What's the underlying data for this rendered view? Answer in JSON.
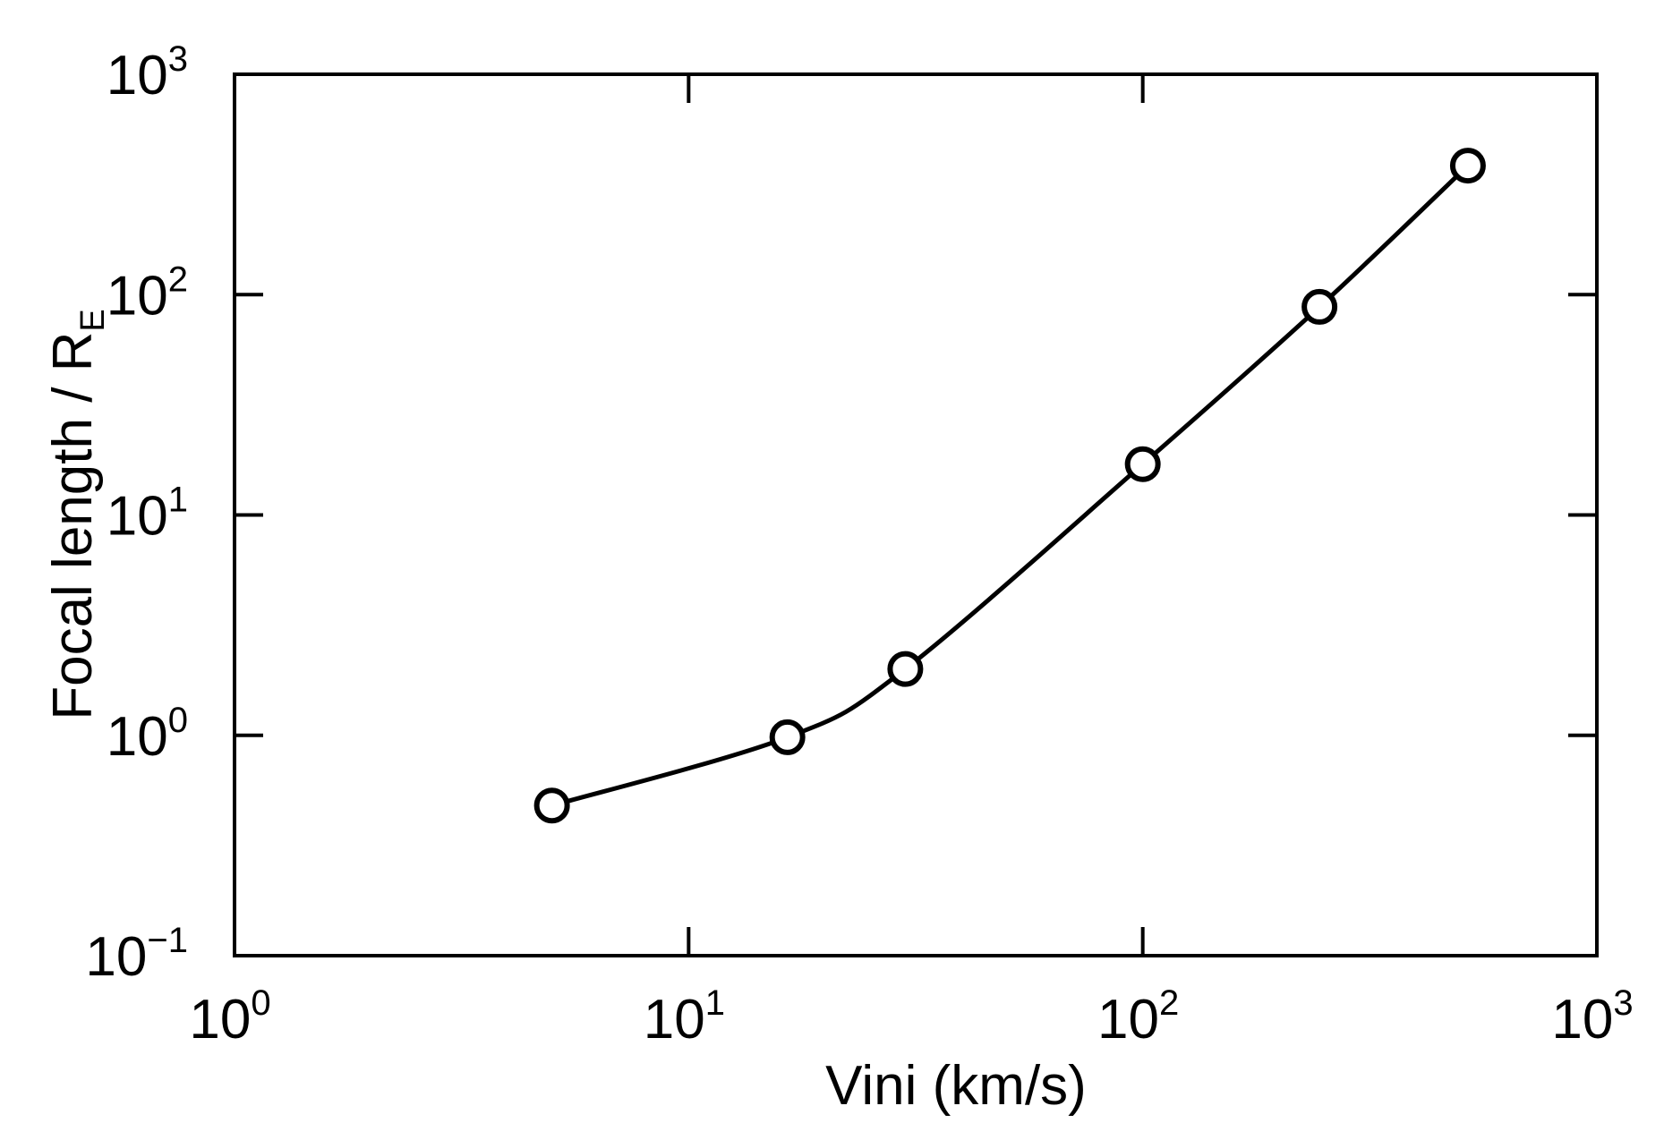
{
  "chart_data": {
    "type": "line",
    "xlabel": "Vini (km/s)",
    "ylabel_main": "Focal length / R",
    "ylabel_sub": "E",
    "x_scale": "log",
    "y_scale": "log",
    "xlim": [
      1,
      1000
    ],
    "ylim": [
      0.1,
      1000
    ],
    "grid": false,
    "x_ticks": [
      {
        "value": 1,
        "base": "10",
        "exp": "0"
      },
      {
        "value": 10,
        "base": "10",
        "exp": "1"
      },
      {
        "value": 100,
        "base": "10",
        "exp": "2"
      },
      {
        "value": 1000,
        "base": "10",
        "exp": "3"
      }
    ],
    "y_ticks": [
      {
        "value": 0.1,
        "base": "10",
        "exp": "−1"
      },
      {
        "value": 1,
        "base": "10",
        "exp": "0"
      },
      {
        "value": 10,
        "base": "10",
        "exp": "1"
      },
      {
        "value": 100,
        "base": "10",
        "exp": "2"
      },
      {
        "value": 1000,
        "base": "10",
        "exp": "3"
      }
    ],
    "series": [
      {
        "marker": "open-circle",
        "color": "#000000",
        "x": [
          5,
          16.5,
          30,
          100,
          245,
          520
        ],
        "y": [
          0.48,
          0.98,
          2.0,
          17,
          88,
          385
        ]
      }
    ]
  }
}
